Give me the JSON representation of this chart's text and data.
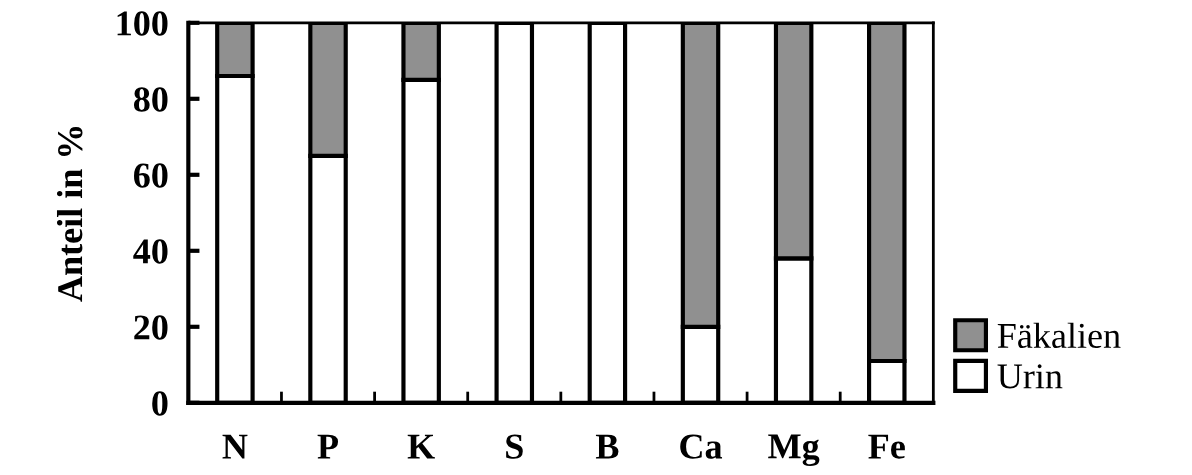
{
  "chart_data": {
    "type": "bar",
    "stacked": true,
    "ylabel": "Anteil in %",
    "categories": [
      "N",
      "P",
      "K",
      "S",
      "B",
      "Ca",
      "Mg",
      "Fe"
    ],
    "series": [
      {
        "name": "Urin",
        "color": "#ffffff",
        "values": [
          86,
          65,
          85,
          100,
          100,
          20,
          38,
          11
        ]
      },
      {
        "name": "Fäkalien",
        "color": "#909090",
        "values": [
          14,
          35,
          15,
          null,
          null,
          80,
          62,
          89
        ]
      }
    ],
    "ylim": [
      0,
      100
    ],
    "yticks": [
      0,
      20,
      40,
      60,
      80,
      100
    ],
    "grid": false,
    "legend": "right"
  }
}
